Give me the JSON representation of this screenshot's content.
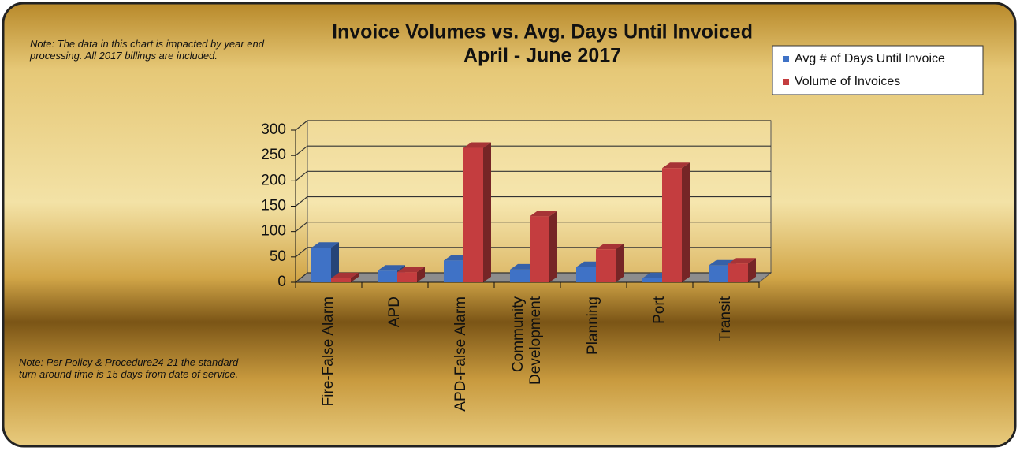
{
  "chart_data": {
    "type": "bar",
    "title": "Invoice Volumes vs. Avg. Days Until Invoiced",
    "subtitle": "April - June 2017",
    "notes": [
      "Note: The data in this chart is impacted by year end processing. All 2017 billings are included.",
      "Note: Per Policy & Procedure24-21 the standard turn around time is 15 days from date of service."
    ],
    "categories": [
      "Fire-False Alarm",
      "APD",
      "APD-False Alarm",
      "Community Development",
      "Planning",
      "Port",
      "Transit"
    ],
    "series": [
      {
        "name": "Avg # of Days Until Invoice",
        "color": "#3f72c6",
        "values": [
          68,
          23,
          43,
          25,
          30,
          8,
          33
        ]
      },
      {
        "name": "Volume of Invoices",
        "color": "#c43d3f",
        "values": [
          8,
          20,
          265,
          130,
          65,
          225,
          37
        ]
      }
    ],
    "ylim": [
      0,
      300
    ],
    "yticks": [
      0,
      50,
      100,
      150,
      200,
      250,
      300
    ],
    "grid": true,
    "legend": "top-right"
  }
}
